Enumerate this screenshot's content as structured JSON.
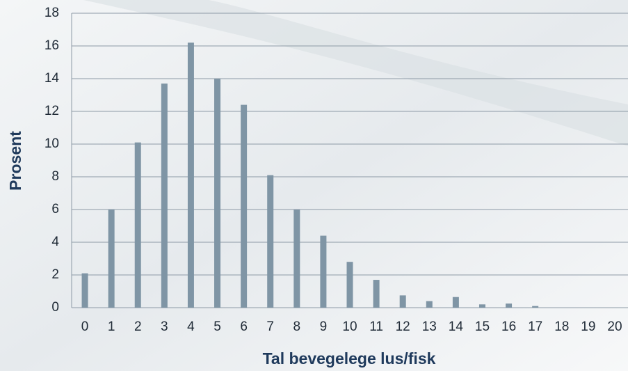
{
  "chart_data": {
    "type": "bar",
    "x_label": "Tal bevegelege lus/fisk",
    "y_label": "Prosent",
    "categories": [
      "0",
      "1",
      "2",
      "3",
      "4",
      "5",
      "6",
      "7",
      "8",
      "9",
      "10",
      "11",
      "12",
      "13",
      "14",
      "15",
      "16",
      "17",
      "18",
      "19",
      "20"
    ],
    "values": [
      2.1,
      6.0,
      10.1,
      13.7,
      16.2,
      14.0,
      12.4,
      8.1,
      6.0,
      4.4,
      2.8,
      1.7,
      0.75,
      0.4,
      0.65,
      0.2,
      0.25,
      0.1,
      0,
      0,
      0
    ],
    "color": "#7f95a5",
    "ylim": [
      0,
      18
    ],
    "yticks": [
      0,
      2,
      4,
      6,
      8,
      10,
      12,
      14,
      16,
      18
    ],
    "grid": true
  }
}
